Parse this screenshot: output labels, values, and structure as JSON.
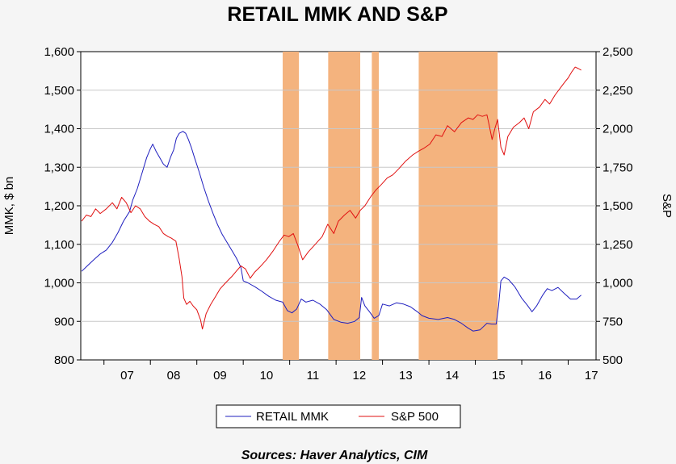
{
  "chart_data": {
    "type": "line",
    "title": "RETAIL MMK AND S&P",
    "ylabel_left": "MMK, $ bn",
    "ylabel_right": "S&P",
    "source": "Sources:  Haver Analytics, CIM",
    "x_range": [
      2006.5,
      2017.6
    ],
    "x_ticks": [
      {
        "label": "07",
        "value": 2007
      },
      {
        "label": "08",
        "value": 2008
      },
      {
        "label": "09",
        "value": 2009
      },
      {
        "label": "10",
        "value": 2010
      },
      {
        "label": "11",
        "value": 2011
      },
      {
        "label": "12",
        "value": 2012
      },
      {
        "label": "13",
        "value": 2013
      },
      {
        "label": "14",
        "value": 2014
      },
      {
        "label": "15",
        "value": 2015
      },
      {
        "label": "16",
        "value": 2016
      },
      {
        "label": "17",
        "value": 2017
      }
    ],
    "y_left": {
      "min": 800,
      "max": 1600,
      "ticks": [
        {
          "label": "800",
          "value": 800
        },
        {
          "label": "900",
          "value": 900
        },
        {
          "label": "1,000",
          "value": 1000
        },
        {
          "label": "1,100",
          "value": 1100
        },
        {
          "label": "1,200",
          "value": 1200
        },
        {
          "label": "1,300",
          "value": 1300
        },
        {
          "label": "1,400",
          "value": 1400
        },
        {
          "label": "1,500",
          "value": 1500
        },
        {
          "label": "1,600",
          "value": 1600
        }
      ]
    },
    "y_right": {
      "min": 500,
      "max": 2500,
      "ticks": [
        {
          "label": "500",
          "value": 500
        },
        {
          "label": "750",
          "value": 750
        },
        {
          "label": "1,000",
          "value": 1000
        },
        {
          "label": "1,250",
          "value": 1250
        },
        {
          "label": "1,500",
          "value": 1500
        },
        {
          "label": "1,750",
          "value": 1750
        },
        {
          "label": "2,000",
          "value": 2000
        },
        {
          "label": "2,250",
          "value": 2250
        },
        {
          "label": "2,500",
          "value": 2500
        }
      ]
    },
    "shaded_periods": [
      [
        2010.85,
        2011.2
      ],
      [
        2011.83,
        2012.52
      ],
      [
        2012.77,
        2012.92
      ],
      [
        2013.78,
        2015.48
      ]
    ],
    "series": [
      {
        "name": "RETAIL MMK",
        "axis": "left",
        "color": "#1f1fbf",
        "points": [
          [
            2006.52,
            1030
          ],
          [
            2006.65,
            1045
          ],
          [
            2006.8,
            1062
          ],
          [
            2006.92,
            1075
          ],
          [
            2007.05,
            1085
          ],
          [
            2007.18,
            1105
          ],
          [
            2007.3,
            1130
          ],
          [
            2007.42,
            1160
          ],
          [
            2007.55,
            1185
          ],
          [
            2007.62,
            1215
          ],
          [
            2007.72,
            1245
          ],
          [
            2007.82,
            1285
          ],
          [
            2007.92,
            1325
          ],
          [
            2008.0,
            1348
          ],
          [
            2008.05,
            1360
          ],
          [
            2008.12,
            1342
          ],
          [
            2008.2,
            1325
          ],
          [
            2008.28,
            1308
          ],
          [
            2008.36,
            1300
          ],
          [
            2008.44,
            1328
          ],
          [
            2008.5,
            1345
          ],
          [
            2008.56,
            1375
          ],
          [
            2008.62,
            1388
          ],
          [
            2008.7,
            1393
          ],
          [
            2008.76,
            1388
          ],
          [
            2008.82,
            1372
          ],
          [
            2008.88,
            1352
          ],
          [
            2008.95,
            1325
          ],
          [
            2009.05,
            1288
          ],
          [
            2009.15,
            1248
          ],
          [
            2009.25,
            1212
          ],
          [
            2009.35,
            1180
          ],
          [
            2009.45,
            1150
          ],
          [
            2009.55,
            1125
          ],
          [
            2009.65,
            1105
          ],
          [
            2009.75,
            1085
          ],
          [
            2009.85,
            1065
          ],
          [
            2009.95,
            1040
          ],
          [
            2010.0,
            1005
          ],
          [
            2010.1,
            1000
          ],
          [
            2010.25,
            990
          ],
          [
            2010.4,
            978
          ],
          [
            2010.55,
            965
          ],
          [
            2010.7,
            955
          ],
          [
            2010.85,
            950
          ],
          [
            2010.95,
            928
          ],
          [
            2011.05,
            922
          ],
          [
            2011.15,
            932
          ],
          [
            2011.25,
            958
          ],
          [
            2011.35,
            950
          ],
          [
            2011.5,
            955
          ],
          [
            2011.65,
            945
          ],
          [
            2011.8,
            930
          ],
          [
            2011.95,
            905
          ],
          [
            2012.1,
            898
          ],
          [
            2012.25,
            895
          ],
          [
            2012.4,
            900
          ],
          [
            2012.5,
            910
          ],
          [
            2012.55,
            962
          ],
          [
            2012.62,
            940
          ],
          [
            2012.72,
            925
          ],
          [
            2012.82,
            908
          ],
          [
            2012.92,
            915
          ],
          [
            2013.0,
            945
          ],
          [
            2013.15,
            940
          ],
          [
            2013.3,
            948
          ],
          [
            2013.45,
            945
          ],
          [
            2013.6,
            938
          ],
          [
            2013.75,
            925
          ],
          [
            2013.85,
            915
          ],
          [
            2014.0,
            908
          ],
          [
            2014.2,
            905
          ],
          [
            2014.4,
            910
          ],
          [
            2014.55,
            905
          ],
          [
            2014.7,
            895
          ],
          [
            2014.85,
            882
          ],
          [
            2014.95,
            875
          ],
          [
            2015.1,
            878
          ],
          [
            2015.25,
            895
          ],
          [
            2015.35,
            893
          ],
          [
            2015.45,
            893
          ],
          [
            2015.5,
            940
          ],
          [
            2015.55,
            1005
          ],
          [
            2015.62,
            1015
          ],
          [
            2015.72,
            1008
          ],
          [
            2015.85,
            990
          ],
          [
            2016.0,
            960
          ],
          [
            2016.12,
            942
          ],
          [
            2016.22,
            925
          ],
          [
            2016.32,
            940
          ],
          [
            2016.45,
            968
          ],
          [
            2016.55,
            985
          ],
          [
            2016.65,
            980
          ],
          [
            2016.78,
            988
          ],
          [
            2016.92,
            972
          ],
          [
            2017.05,
            958
          ],
          [
            2017.18,
            958
          ],
          [
            2017.28,
            968
          ]
        ]
      },
      {
        "name": "S&P 500",
        "axis": "right",
        "color": "#e01010",
        "points": [
          [
            2006.52,
            1400
          ],
          [
            2006.62,
            1440
          ],
          [
            2006.72,
            1430
          ],
          [
            2006.82,
            1480
          ],
          [
            2006.92,
            1450
          ],
          [
            2007.05,
            1480
          ],
          [
            2007.18,
            1520
          ],
          [
            2007.28,
            1480
          ],
          [
            2007.38,
            1555
          ],
          [
            2007.48,
            1520
          ],
          [
            2007.58,
            1455
          ],
          [
            2007.68,
            1500
          ],
          [
            2007.78,
            1480
          ],
          [
            2007.88,
            1430
          ],
          [
            2007.98,
            1400
          ],
          [
            2008.08,
            1380
          ],
          [
            2008.18,
            1365
          ],
          [
            2008.28,
            1320
          ],
          [
            2008.38,
            1300
          ],
          [
            2008.45,
            1290
          ],
          [
            2008.55,
            1270
          ],
          [
            2008.62,
            1155
          ],
          [
            2008.68,
            1040
          ],
          [
            2008.72,
            900
          ],
          [
            2008.78,
            860
          ],
          [
            2008.85,
            880
          ],
          [
            2008.92,
            850
          ],
          [
            2009.0,
            825
          ],
          [
            2009.08,
            760
          ],
          [
            2009.12,
            700
          ],
          [
            2009.2,
            800
          ],
          [
            2009.3,
            860
          ],
          [
            2009.4,
            910
          ],
          [
            2009.5,
            960
          ],
          [
            2009.62,
            1000
          ],
          [
            2009.75,
            1040
          ],
          [
            2009.85,
            1075
          ],
          [
            2009.95,
            1110
          ],
          [
            2010.05,
            1090
          ],
          [
            2010.15,
            1030
          ],
          [
            2010.25,
            1070
          ],
          [
            2010.35,
            1100
          ],
          [
            2010.5,
            1150
          ],
          [
            2010.65,
            1210
          ],
          [
            2010.78,
            1270
          ],
          [
            2010.88,
            1310
          ],
          [
            2010.98,
            1300
          ],
          [
            2011.08,
            1320
          ],
          [
            2011.18,
            1240
          ],
          [
            2011.28,
            1150
          ],
          [
            2011.4,
            1200
          ],
          [
            2011.55,
            1250
          ],
          [
            2011.7,
            1300
          ],
          [
            2011.82,
            1380
          ],
          [
            2011.95,
            1320
          ],
          [
            2012.05,
            1400
          ],
          [
            2012.18,
            1440
          ],
          [
            2012.3,
            1470
          ],
          [
            2012.42,
            1420
          ],
          [
            2012.52,
            1470
          ],
          [
            2012.62,
            1500
          ],
          [
            2012.75,
            1560
          ],
          [
            2012.85,
            1600
          ],
          [
            2012.98,
            1640
          ],
          [
            2013.1,
            1680
          ],
          [
            2013.22,
            1700
          ],
          [
            2013.35,
            1740
          ],
          [
            2013.5,
            1790
          ],
          [
            2013.65,
            1830
          ],
          [
            2013.78,
            1855
          ],
          [
            2013.9,
            1875
          ],
          [
            2014.02,
            1900
          ],
          [
            2014.15,
            1960
          ],
          [
            2014.28,
            1950
          ],
          [
            2014.4,
            2020
          ],
          [
            2014.55,
            1980
          ],
          [
            2014.7,
            2040
          ],
          [
            2014.85,
            2070
          ],
          [
            2014.95,
            2060
          ],
          [
            2015.05,
            2090
          ],
          [
            2015.15,
            2080
          ],
          [
            2015.25,
            2090
          ],
          [
            2015.3,
            2020
          ],
          [
            2015.36,
            1930
          ],
          [
            2015.42,
            2000
          ],
          [
            2015.48,
            2060
          ],
          [
            2015.55,
            1880
          ],
          [
            2015.62,
            1830
          ],
          [
            2015.7,
            1950
          ],
          [
            2015.82,
            2010
          ],
          [
            2015.95,
            2040
          ],
          [
            2016.05,
            2070
          ],
          [
            2016.15,
            2000
          ],
          [
            2016.25,
            2110
          ],
          [
            2016.38,
            2140
          ],
          [
            2016.5,
            2190
          ],
          [
            2016.6,
            2160
          ],
          [
            2016.72,
            2220
          ],
          [
            2016.82,
            2260
          ],
          [
            2016.92,
            2300
          ],
          [
            2017.0,
            2330
          ],
          [
            2017.08,
            2370
          ],
          [
            2017.15,
            2400
          ],
          [
            2017.22,
            2390
          ],
          [
            2017.28,
            2380
          ]
        ]
      }
    ],
    "legend": {
      "placement": "bottom",
      "entries": [
        {
          "name": "RETAIL MMK",
          "color": "#1f1fbf"
        },
        {
          "name": "S&P 500",
          "color": "#e01010"
        }
      ]
    },
    "shade_color": "#f4b37e",
    "grid": true
  }
}
